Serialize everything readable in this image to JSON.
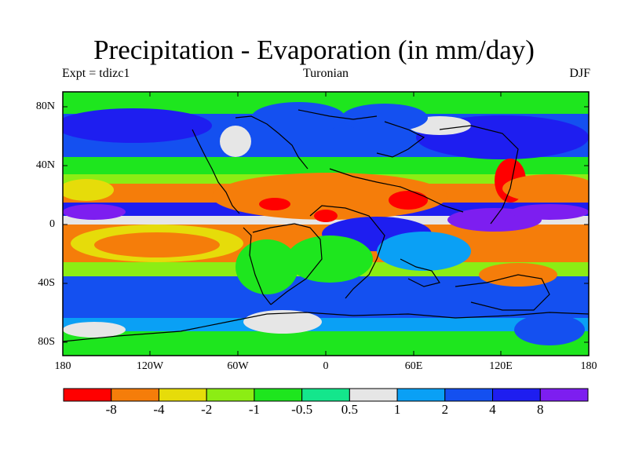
{
  "title": "Precipitation - Evaporation (in mm/day)",
  "left_string": "Expt = tdizc1",
  "center_string": "Turonian",
  "right_string": "DJF",
  "lat_labels": [
    "80N",
    "40N",
    "0",
    "40S",
    "80S"
  ],
  "lon_labels": [
    "180",
    "120W",
    "60W",
    "0",
    "60E",
    "120E",
    "180"
  ],
  "colorbar": {
    "colors": [
      "#ff0000",
      "#f57d0a",
      "#e6dc0a",
      "#8ced14",
      "#1ee61e",
      "#14e68c",
      "#e6e6e6",
      "#0aa0f5",
      "#1450f0",
      "#1e1ef0",
      "#7d1ef0"
    ],
    "labels": [
      "-8",
      "-4",
      "-2",
      "-1",
      "-0.5",
      "0.5",
      "1",
      "2",
      "4",
      "8"
    ]
  },
  "map_colors": {
    "ocean_dry": "#f57d0a",
    "ocean_very_dry": "#ff0000",
    "moderate_dry": "#e6dc0a",
    "light_dry": "#8ced14",
    "neutral_low": "#1ee61e",
    "neutral_high": "#14e68c",
    "near_zero": "#e6e6e6",
    "wet_low": "#0aa0f5",
    "wet_mid": "#1450f0",
    "wet_high": "#1e1ef0",
    "wet_very_high": "#7d1ef0",
    "coastline": "#000000"
  }
}
